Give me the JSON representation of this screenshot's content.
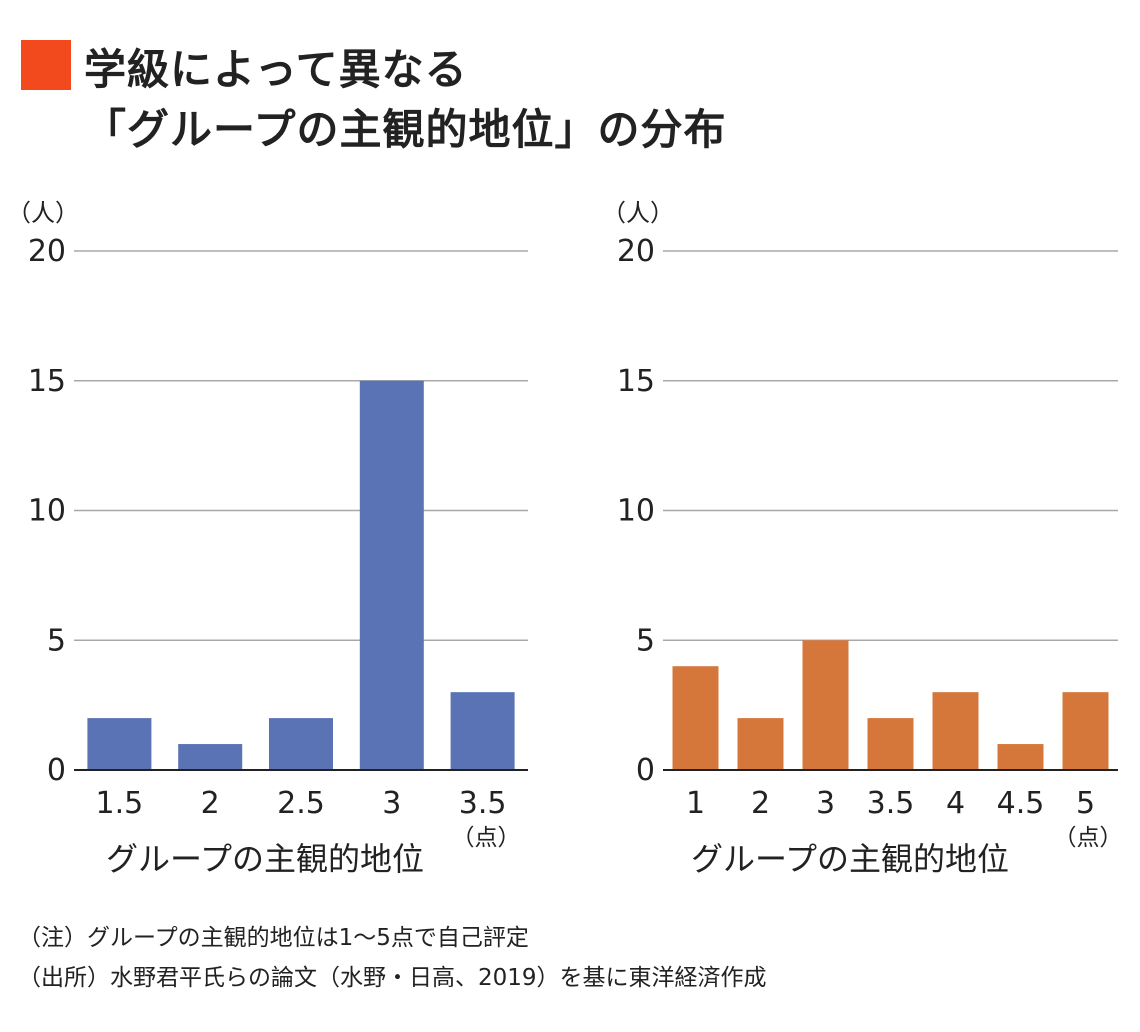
{
  "title": {
    "line1": "学級によって異なる",
    "line2": "「グループの主観的地位」の分布",
    "marker_color": "#F24A1C"
  },
  "chart_data": [
    {
      "type": "bar",
      "categories": [
        "1.5",
        "2",
        "2.5",
        "3",
        "3.5"
      ],
      "values": [
        2,
        1,
        2,
        15,
        3
      ],
      "color": "#5A73B5",
      "y_unit": "（人）",
      "x_unit": "（点）",
      "xlabel": "グループの主観的地位",
      "ylim": [
        0,
        20
      ],
      "yticks": [
        0,
        5,
        10,
        15,
        20
      ],
      "grid": true
    },
    {
      "type": "bar",
      "categories": [
        "1",
        "2",
        "3",
        "3.5",
        "4",
        "4.5",
        "5"
      ],
      "values": [
        4,
        2,
        5,
        2,
        3,
        1,
        3
      ],
      "color": "#D5773A",
      "y_unit": "（人）",
      "x_unit": "（点）",
      "xlabel": "グループの主観的地位",
      "ylim": [
        0,
        20
      ],
      "yticks": [
        0,
        5,
        10,
        15,
        20
      ],
      "grid": true
    }
  ],
  "notes": {
    "note": "（注）グループの主観的地位は1～5点で自己評定",
    "source": "（出所）水野君平氏らの論文（水野・日高、2019）を基に東洋経済作成"
  }
}
